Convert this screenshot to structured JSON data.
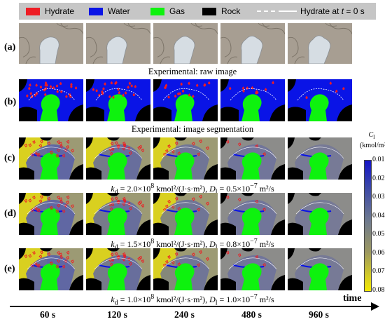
{
  "legend": {
    "hydrate": {
      "label": "Hydrate",
      "color": "#ee1c24"
    },
    "water": {
      "label": "Water",
      "color": "#0a14e6"
    },
    "gas": {
      "label": "Gas",
      "color": "#0ef20e"
    },
    "rock": {
      "label": "Rock",
      "color": "#000000"
    },
    "line": {
      "label": "Hydrate at t = 0 s",
      "label_prefix": "Hydrate at ",
      "label_var": "t",
      "label_suffix": " = 0 s"
    }
  },
  "rows": [
    {
      "label": "(a)",
      "style": "raw"
    },
    {
      "label": "(b)",
      "style": "seg"
    },
    {
      "label": "(c)",
      "style": "sim"
    },
    {
      "label": "(d)",
      "style": "sim"
    },
    {
      "label": "(e)",
      "style": "sim"
    }
  ],
  "captions": {
    "raw": "Experimental: raw image",
    "seg": "Experimental: image segmentation"
  },
  "params": [
    {
      "kd_sym": "k",
      "kd_sub": "d",
      "kd_val": " = 2.0×10",
      "kd_exp": "8",
      "kd_unit": " kmol²/(J·s·m²), ",
      "d_sym": "D",
      "d_sub": "l",
      "d_val": " = 0.5×10",
      "d_exp": "−7",
      "d_unit": " m²/s"
    },
    {
      "kd_sym": "k",
      "kd_sub": "d",
      "kd_val": " = 1.5×10",
      "kd_exp": "8",
      "kd_unit": " kmol²/(J·s·m²), ",
      "d_sym": "D",
      "d_sub": "l",
      "d_val": " = 0.8×10",
      "d_exp": "−7",
      "d_unit": " m²/s"
    },
    {
      "kd_sym": "k",
      "kd_sub": "d",
      "kd_val": " = 1.0×10",
      "kd_exp": "8",
      "kd_unit": " kmol²/(J·s·m²), ",
      "d_sym": "D",
      "d_sub": "l",
      "d_val": " = 1.0×10",
      "d_exp": "−7",
      "d_unit": " m²/s"
    }
  ],
  "colorbar": {
    "symbol": "C",
    "sub": "l",
    "unit": "(kmol/m³)",
    "ticks": [
      "0.01",
      "0.02",
      "0.03",
      "0.04",
      "0.05",
      "0.06",
      "0.07",
      "0.08"
    ]
  },
  "times": [
    "60 s",
    "120 s",
    "240 s",
    "480 s",
    "960 s"
  ],
  "time_label": "time",
  "colors": {
    "raw_bg": "#a79e92",
    "raw_bubble": "#d6dde3",
    "sim_yellow": "#d9d020",
    "sim_gray": "#8c8c8a"
  }
}
